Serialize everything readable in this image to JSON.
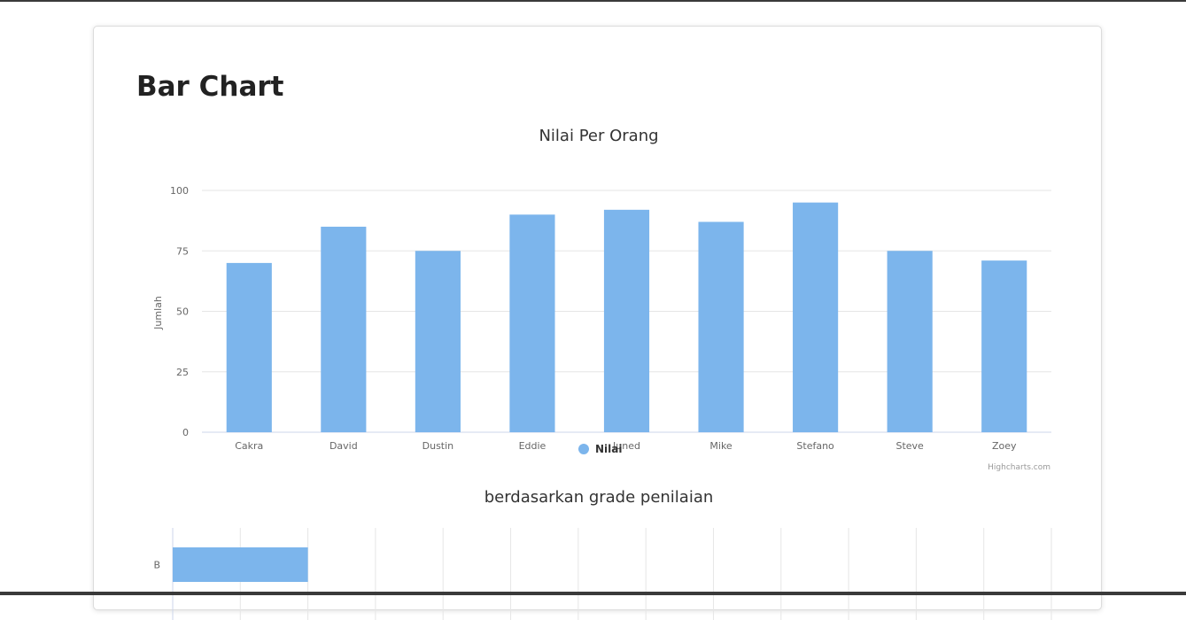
{
  "page": {
    "title": "Bar Chart"
  },
  "chart_data": [
    {
      "type": "bar",
      "title": "Nilai Per Orang",
      "xlabel": "",
      "ylabel": "Jumlah",
      "categories": [
        "Cakra",
        "David",
        "Dustin",
        "Eddie",
        "Juned",
        "Mike",
        "Stefano",
        "Steve",
        "Zoey"
      ],
      "series": [
        {
          "name": "Nilai",
          "values": [
            70,
            85,
            75,
            90,
            92,
            87,
            95,
            75,
            71
          ]
        }
      ],
      "yticks": [
        "0",
        "25",
        "50",
        "75",
        "100"
      ],
      "ylim": [
        0,
        100
      ],
      "grid": true,
      "legend": "bottom-center",
      "credits": "Highcharts.com",
      "color": "#7cb5ec"
    },
    {
      "type": "bar",
      "orientation": "horizontal",
      "title": "berdasarkan grade penilaian",
      "categories": [
        "B"
      ],
      "series": [
        {
          "name": "Nilai",
          "values": [
            2
          ]
        }
      ],
      "xlim": [
        0,
        13
      ],
      "grid": true,
      "color": "#7cb5ec"
    }
  ]
}
